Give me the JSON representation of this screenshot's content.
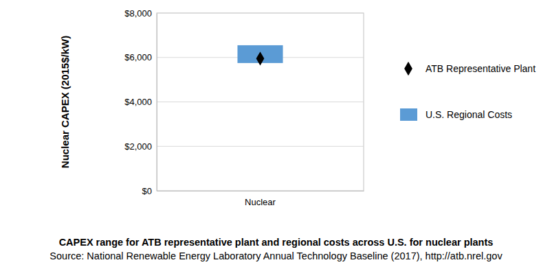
{
  "chart_data": {
    "type": "range",
    "title": "CAPEX range for ATB representative plant and regional costs across U.S. for nuclear plants",
    "subtitle": "Source: National Renewable Energy Laboratory Annual Technology Baseline (2017), http://atb.nrel.gov",
    "y_label": "Nuclear CAPEX (2015$/kW)",
    "categories": [
      "Nuclear"
    ],
    "series": [
      {
        "name": "ATB Representative Plant",
        "type": "scatter",
        "marker": "diamond",
        "color": "#000000",
        "values": [
          5950
        ]
      },
      {
        "name": "U.S. Regional Costs",
        "type": "range",
        "color": "#5b9bd5",
        "low": [
          5750
        ],
        "high": [
          6550
        ]
      }
    ],
    "ylim": [
      0,
      8000
    ],
    "yticks": [
      {
        "value": 0,
        "label": "$0"
      },
      {
        "value": 2000,
        "label": "$2,000"
      },
      {
        "value": 4000,
        "label": "$4,000"
      },
      {
        "value": 6000,
        "label": "$6,000"
      },
      {
        "value": 8000,
        "label": "$8,000"
      }
    ],
    "grid": true,
    "legend": "right"
  }
}
